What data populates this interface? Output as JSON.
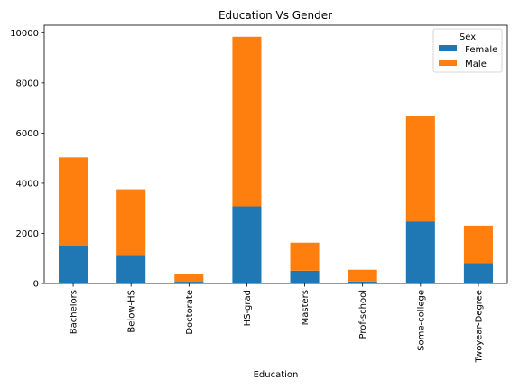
{
  "chart_data": {
    "type": "bar",
    "stacked": true,
    "title": "Education Vs Gender",
    "xlabel": "Education",
    "ylabel": "",
    "categories": [
      "Bachelors",
      "Below-HS",
      "Doctorate",
      "HS-grad",
      "Masters",
      "Prof-school",
      "Some-college",
      "Twoyear-Degree"
    ],
    "series": [
      {
        "name": " Female",
        "color": "#1f77b4",
        "values": [
          1500,
          1100,
          70,
          3080,
          510,
          80,
          2480,
          820
        ]
      },
      {
        "name": " Male",
        "color": "#ff7f0e",
        "values": [
          3530,
          2660,
          310,
          6760,
          1120,
          470,
          4200,
          1490
        ]
      }
    ],
    "ylim": [
      0,
      10300
    ],
    "yticks": [
      0,
      2000,
      4000,
      6000,
      8000,
      10000
    ],
    "grid": false,
    "legend": {
      "title": "Sex",
      "placement": "top-right"
    }
  }
}
